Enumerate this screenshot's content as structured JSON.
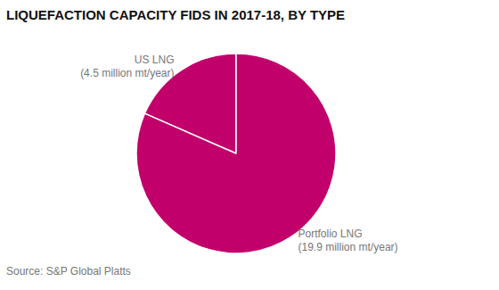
{
  "chart_data": {
    "type": "pie",
    "title": "LIQUEFACTION CAPACITY FIDS IN 2017-18, BY TYPE",
    "source": "Source: S&P Global Platts",
    "categories": [
      "US LNG",
      "Portfolio LNG"
    ],
    "values": [
      4.5,
      19.9
    ],
    "value_labels": [
      "(4.5 million mt/year)",
      "(19.9 million mt/year)"
    ],
    "color": "#c2006b",
    "data_labels": true
  }
}
